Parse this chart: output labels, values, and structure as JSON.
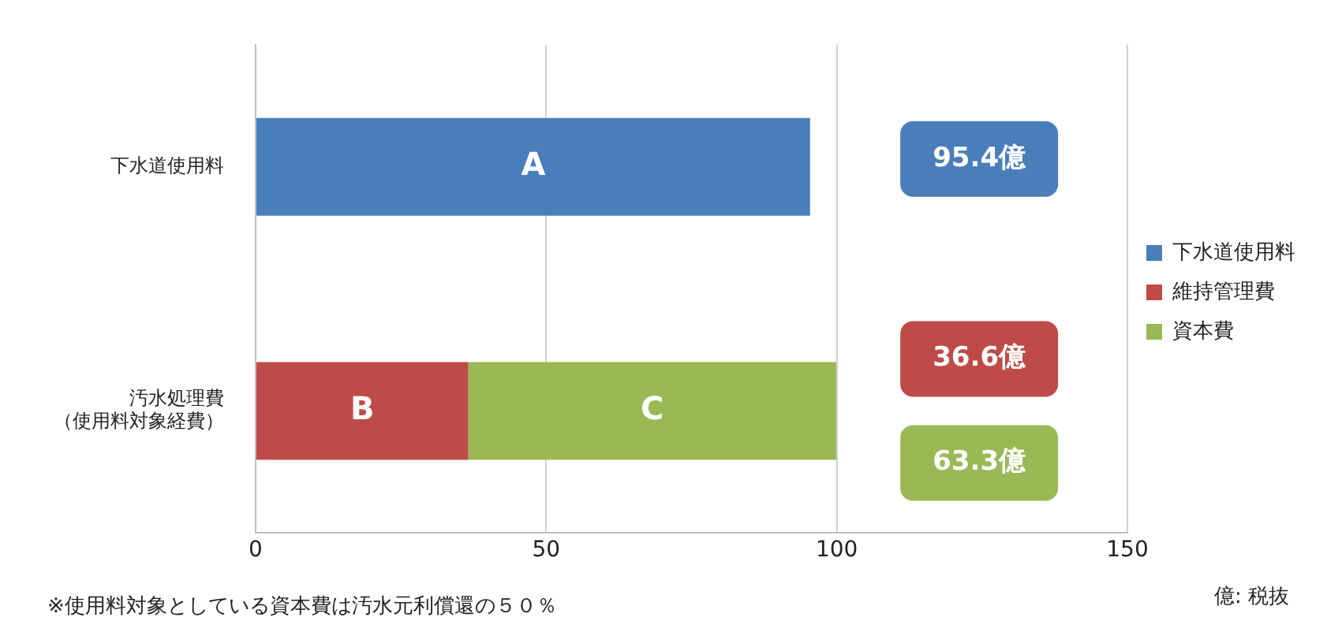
{
  "chart_data": {
    "type": "bar",
    "orientation": "horizontal",
    "stacked": true,
    "categories": [
      "下水道使用料",
      "汚水処理費（使用料対象経費）"
    ],
    "series": [
      {
        "name": "下水道使用料",
        "color": "#4a7ebb",
        "values": [
          95.4,
          null
        ],
        "value_labels": [
          "A",
          null
        ]
      },
      {
        "name": "維持管理費",
        "color": "#be4b48",
        "values": [
          null,
          36.6
        ],
        "value_labels": [
          null,
          "B"
        ]
      },
      {
        "name": "資本費",
        "color": "#98b954",
        "values": [
          null,
          63.3
        ],
        "value_labels": [
          null,
          "C"
        ]
      }
    ],
    "xlim": [
      0,
      150
    ],
    "xticks": [
      0,
      50,
      100,
      150
    ],
    "grid": "x",
    "legend": "right",
    "annotations": [
      "95.4億",
      "36.6億",
      "63.3億",
      "億: 税抜",
      "※使用料対象としている資本費は汚水元利償還の５０％"
    ]
  }
}
